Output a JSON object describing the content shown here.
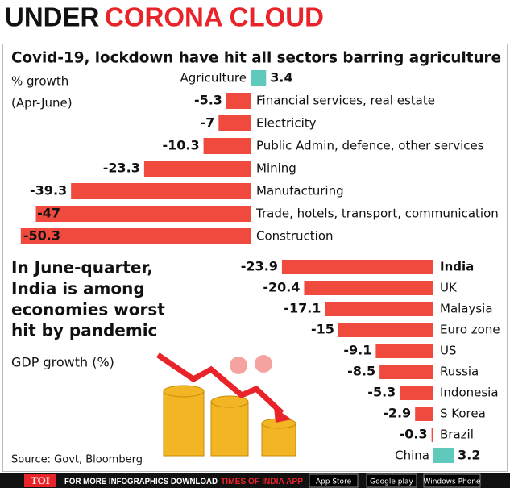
{
  "header": {
    "title_black": "UNDER",
    "title_red": "CORONA CLOUD"
  },
  "chart_data": [
    {
      "type": "bar",
      "orientation": "horizontal",
      "title": "Covid-19, lockdown have hit all sectors barring agriculture",
      "subtitle": [
        "% growth",
        "(Apr-June)"
      ],
      "categories": [
        "Agriculture",
        "Financial services, real estate",
        "Electricity",
        "Public Admin, defence, other services",
        "Mining",
        "Manufacturing",
        "Trade, hotels, transport, communication",
        "Construction"
      ],
      "values": [
        3.4,
        -5.3,
        -7,
        -10.3,
        -23.3,
        -39.3,
        -47,
        -50.3
      ],
      "colors": {
        "positive": "#5fcabb",
        "negative": "#f04a3e"
      }
    },
    {
      "type": "bar",
      "orientation": "horizontal",
      "title": [
        "In June-quarter,",
        "India is among",
        "economies worst",
        "hit by pandemic"
      ],
      "subtitle": "GDP growth (%)",
      "source": "Source: Govt, Bloomberg",
      "categories": [
        "India",
        "UK",
        "Malaysia",
        "Euro zone",
        "US",
        "Russia",
        "Indonesia",
        "S Korea",
        "Brazil",
        "China"
      ],
      "values": [
        -23.9,
        -20.4,
        -17.1,
        -15,
        -9.1,
        -8.5,
        -5.3,
        -2.9,
        -0.3,
        3.2
      ],
      "highlight": "India",
      "colors": {
        "positive": "#5fcabb",
        "negative": "#f04a3e"
      }
    }
  ],
  "footer": {
    "logo": "TOI",
    "text": "FOR MORE INFOGRAPHICS DOWNLOAD",
    "app": "TIMES OF INDIA APP",
    "badges": [
      "App Store",
      "Google play",
      "Windows Phone"
    ]
  }
}
